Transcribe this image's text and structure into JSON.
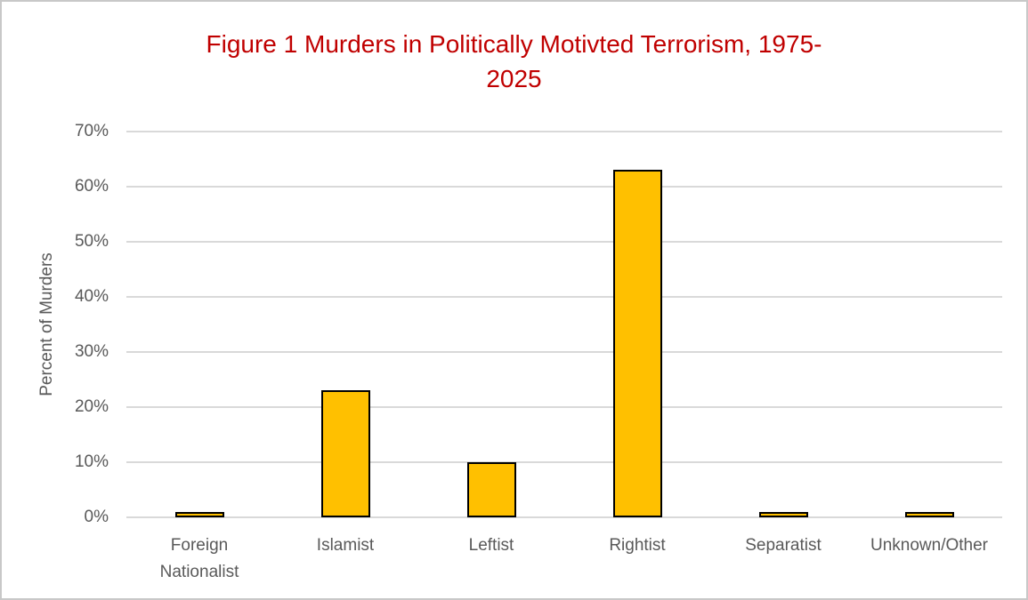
{
  "chart_data": {
    "type": "bar",
    "title": "Figure 1 Murders in Politically Motivted Terrorism, 1975-2025",
    "ylabel": "Percent of Murders",
    "xlabel": "",
    "categories": [
      "Foreign Nationalist",
      "Islamist",
      "Leftist",
      "Rightist",
      "Separatist",
      "Unknown/Other"
    ],
    "values": [
      1,
      23,
      10,
      63,
      1,
      1
    ],
    "unit": "%",
    "ylim": [
      0,
      70
    ],
    "ytick_step": 10,
    "ytick_labels": [
      "0%",
      "10%",
      "20%",
      "30%",
      "40%",
      "50%",
      "60%",
      "70%"
    ],
    "grid": true,
    "legend_position": "none",
    "colors": {
      "title_text": "#C00000",
      "bar_fill": "#FFC000",
      "bar_border": "#000000",
      "axis_text": "#595959",
      "gridline": "#D9D9D9",
      "background": "#FFFFFF",
      "frame_border": "#C8C8C8"
    }
  }
}
